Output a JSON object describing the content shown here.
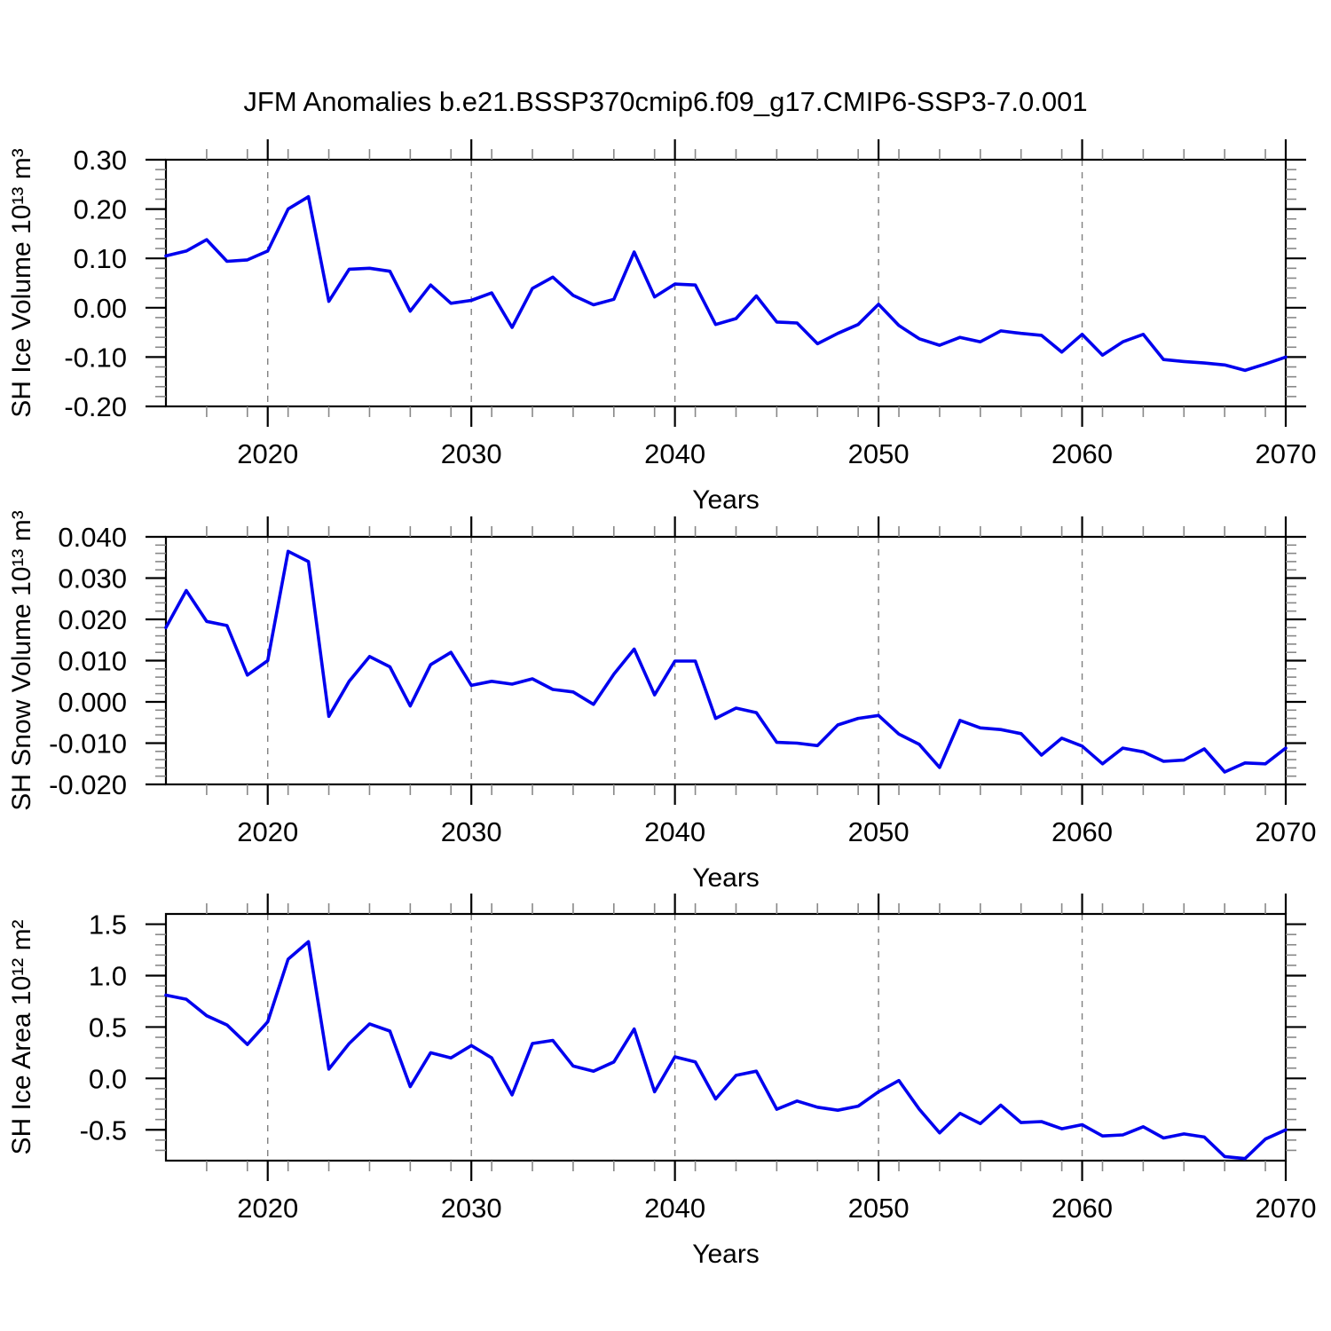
{
  "title": "JFM Anomalies b.e21.BSSP370cmip6.f09_g17.CMIP6-SSP3-7.0.001",
  "line_color": "#0000EE",
  "grid_color": "#808080",
  "chart_data": [
    {
      "id": "sh-ice-volume",
      "type": "line",
      "ylabel": "SH Ice Volume 10¹³ m³",
      "xlabel": "Years",
      "xlim": [
        2015,
        2070
      ],
      "ylim": [
        -0.2,
        0.3
      ],
      "yticks": [
        0.3,
        0.2,
        0.1,
        0.0,
        -0.1,
        -0.2
      ],
      "ytick_labels": [
        "0.30",
        "0.20",
        "0.10",
        "0.00",
        "-0.10",
        "-0.20"
      ],
      "minor_ytick": 0.02,
      "xticks": [
        2020,
        2030,
        2040,
        2050,
        2060,
        2070
      ],
      "xtick_labels": [
        "2020",
        "2030",
        "2040",
        "2050",
        "2060",
        "2070"
      ],
      "minor_xtick": 2,
      "grid": "vertical-dashed-at-major-xticks",
      "legend": "none",
      "x": [
        2015,
        2016,
        2017,
        2018,
        2019,
        2020,
        2021,
        2022,
        2023,
        2024,
        2025,
        2026,
        2027,
        2028,
        2029,
        2030,
        2031,
        2032,
        2033,
        2034,
        2035,
        2036,
        2037,
        2038,
        2039,
        2040,
        2041,
        2042,
        2043,
        2044,
        2045,
        2046,
        2047,
        2048,
        2049,
        2050,
        2051,
        2052,
        2053,
        2054,
        2055,
        2056,
        2057,
        2058,
        2059,
        2060,
        2061,
        2062,
        2063,
        2064,
        2065,
        2066,
        2067,
        2068,
        2069,
        2070
      ],
      "values": [
        0.105,
        0.115,
        0.138,
        0.094,
        0.097,
        0.115,
        0.2,
        0.225,
        0.013,
        0.078,
        0.08,
        0.074,
        -0.007,
        0.046,
        0.009,
        0.015,
        0.03,
        -0.04,
        0.039,
        0.062,
        0.025,
        0.006,
        0.017,
        0.113,
        0.022,
        0.048,
        0.046,
        -0.034,
        -0.022,
        0.024,
        -0.029,
        -0.031,
        -0.073,
        -0.052,
        -0.034,
        0.007,
        -0.036,
        -0.063,
        -0.076,
        -0.06,
        -0.069,
        -0.047,
        -0.052,
        -0.056,
        -0.09,
        -0.054,
        -0.096,
        -0.069,
        -0.054,
        -0.105,
        -0.109,
        -0.112,
        -0.116,
        -0.127,
        -0.114,
        -0.1
      ]
    },
    {
      "id": "sh-snow-volume",
      "type": "line",
      "ylabel": "SH Snow Volume 10¹³ m³",
      "xlabel": "Years",
      "xlim": [
        2015,
        2070
      ],
      "ylim": [
        -0.02,
        0.04
      ],
      "yticks": [
        0.04,
        0.03,
        0.02,
        0.01,
        0.0,
        -0.01,
        -0.02
      ],
      "ytick_labels": [
        "0.040",
        "0.030",
        "0.020",
        "0.010",
        "0.000",
        "-0.010",
        "-0.020"
      ],
      "minor_ytick": 0.002,
      "xticks": [
        2020,
        2030,
        2040,
        2050,
        2060,
        2070
      ],
      "xtick_labels": [
        "2020",
        "2030",
        "2040",
        "2050",
        "2060",
        "2070"
      ],
      "minor_xtick": 2,
      "grid": "vertical-dashed-at-major-xticks",
      "legend": "none",
      "x": [
        2015,
        2016,
        2017,
        2018,
        2019,
        2020,
        2021,
        2022,
        2023,
        2024,
        2025,
        2026,
        2027,
        2028,
        2029,
        2030,
        2031,
        2032,
        2033,
        2034,
        2035,
        2036,
        2037,
        2038,
        2039,
        2040,
        2041,
        2042,
        2043,
        2044,
        2045,
        2046,
        2047,
        2048,
        2049,
        2050,
        2051,
        2052,
        2053,
        2054,
        2055,
        2056,
        2057,
        2058,
        2059,
        2060,
        2061,
        2062,
        2063,
        2064,
        2065,
        2066,
        2067,
        2068,
        2069,
        2070
      ],
      "values": [
        0.018,
        0.027,
        0.0195,
        0.0185,
        0.0065,
        0.01,
        0.0365,
        0.034,
        -0.0035,
        0.005,
        0.011,
        0.0085,
        -0.001,
        0.009,
        0.012,
        0.004,
        0.005,
        0.0043,
        0.0056,
        0.003,
        0.0024,
        -0.0006,
        0.0067,
        0.0128,
        0.0017,
        0.0099,
        0.0099,
        -0.004,
        -0.0015,
        -0.0026,
        -0.0098,
        -0.01,
        -0.0106,
        -0.0056,
        -0.004,
        -0.0033,
        -0.0078,
        -0.0103,
        -0.0159,
        -0.0045,
        -0.0063,
        -0.0067,
        -0.0077,
        -0.0129,
        -0.0088,
        -0.0107,
        -0.015,
        -0.0112,
        -0.0121,
        -0.0144,
        -0.0141,
        -0.0114,
        -0.017,
        -0.0148,
        -0.015,
        -0.0112
      ]
    },
    {
      "id": "sh-ice-area",
      "type": "line",
      "ylabel": "SH Ice Area 10¹² m²",
      "xlabel": "Years",
      "xlim": [
        2015,
        2070
      ],
      "ylim": [
        -0.8,
        1.6
      ],
      "yticks": [
        1.5,
        1.0,
        0.5,
        0.0,
        -0.5
      ],
      "ytick_labels": [
        "1.5",
        "1.0",
        "0.5",
        "0.0",
        "-0.5"
      ],
      "minor_ytick": 0.1,
      "xticks": [
        2020,
        2030,
        2040,
        2050,
        2060,
        2070
      ],
      "xtick_labels": [
        "2020",
        "2030",
        "2040",
        "2050",
        "2060",
        "2070"
      ],
      "minor_xtick": 2,
      "grid": "vertical-dashed-at-major-xticks",
      "legend": "none",
      "x": [
        2015,
        2016,
        2017,
        2018,
        2019,
        2020,
        2021,
        2022,
        2023,
        2024,
        2025,
        2026,
        2027,
        2028,
        2029,
        2030,
        2031,
        2032,
        2033,
        2034,
        2035,
        2036,
        2037,
        2038,
        2039,
        2040,
        2041,
        2042,
        2043,
        2044,
        2045,
        2046,
        2047,
        2048,
        2049,
        2050,
        2051,
        2052,
        2053,
        2054,
        2055,
        2056,
        2057,
        2058,
        2059,
        2060,
        2061,
        2062,
        2063,
        2064,
        2065,
        2066,
        2067,
        2068,
        2069,
        2070
      ],
      "values": [
        0.81,
        0.77,
        0.61,
        0.52,
        0.33,
        0.55,
        1.16,
        1.33,
        0.09,
        0.34,
        0.53,
        0.46,
        -0.08,
        0.25,
        0.2,
        0.32,
        0.2,
        -0.16,
        0.34,
        0.37,
        0.12,
        0.07,
        0.16,
        0.48,
        -0.13,
        0.21,
        0.16,
        -0.2,
        0.03,
        0.07,
        -0.3,
        -0.22,
        -0.28,
        -0.31,
        -0.27,
        -0.13,
        -0.02,
        -0.3,
        -0.53,
        -0.34,
        -0.44,
        -0.26,
        -0.43,
        -0.42,
        -0.49,
        -0.45,
        -0.56,
        -0.55,
        -0.47,
        -0.58,
        -0.54,
        -0.57,
        -0.76,
        -0.78,
        -0.59,
        -0.5
      ]
    }
  ]
}
